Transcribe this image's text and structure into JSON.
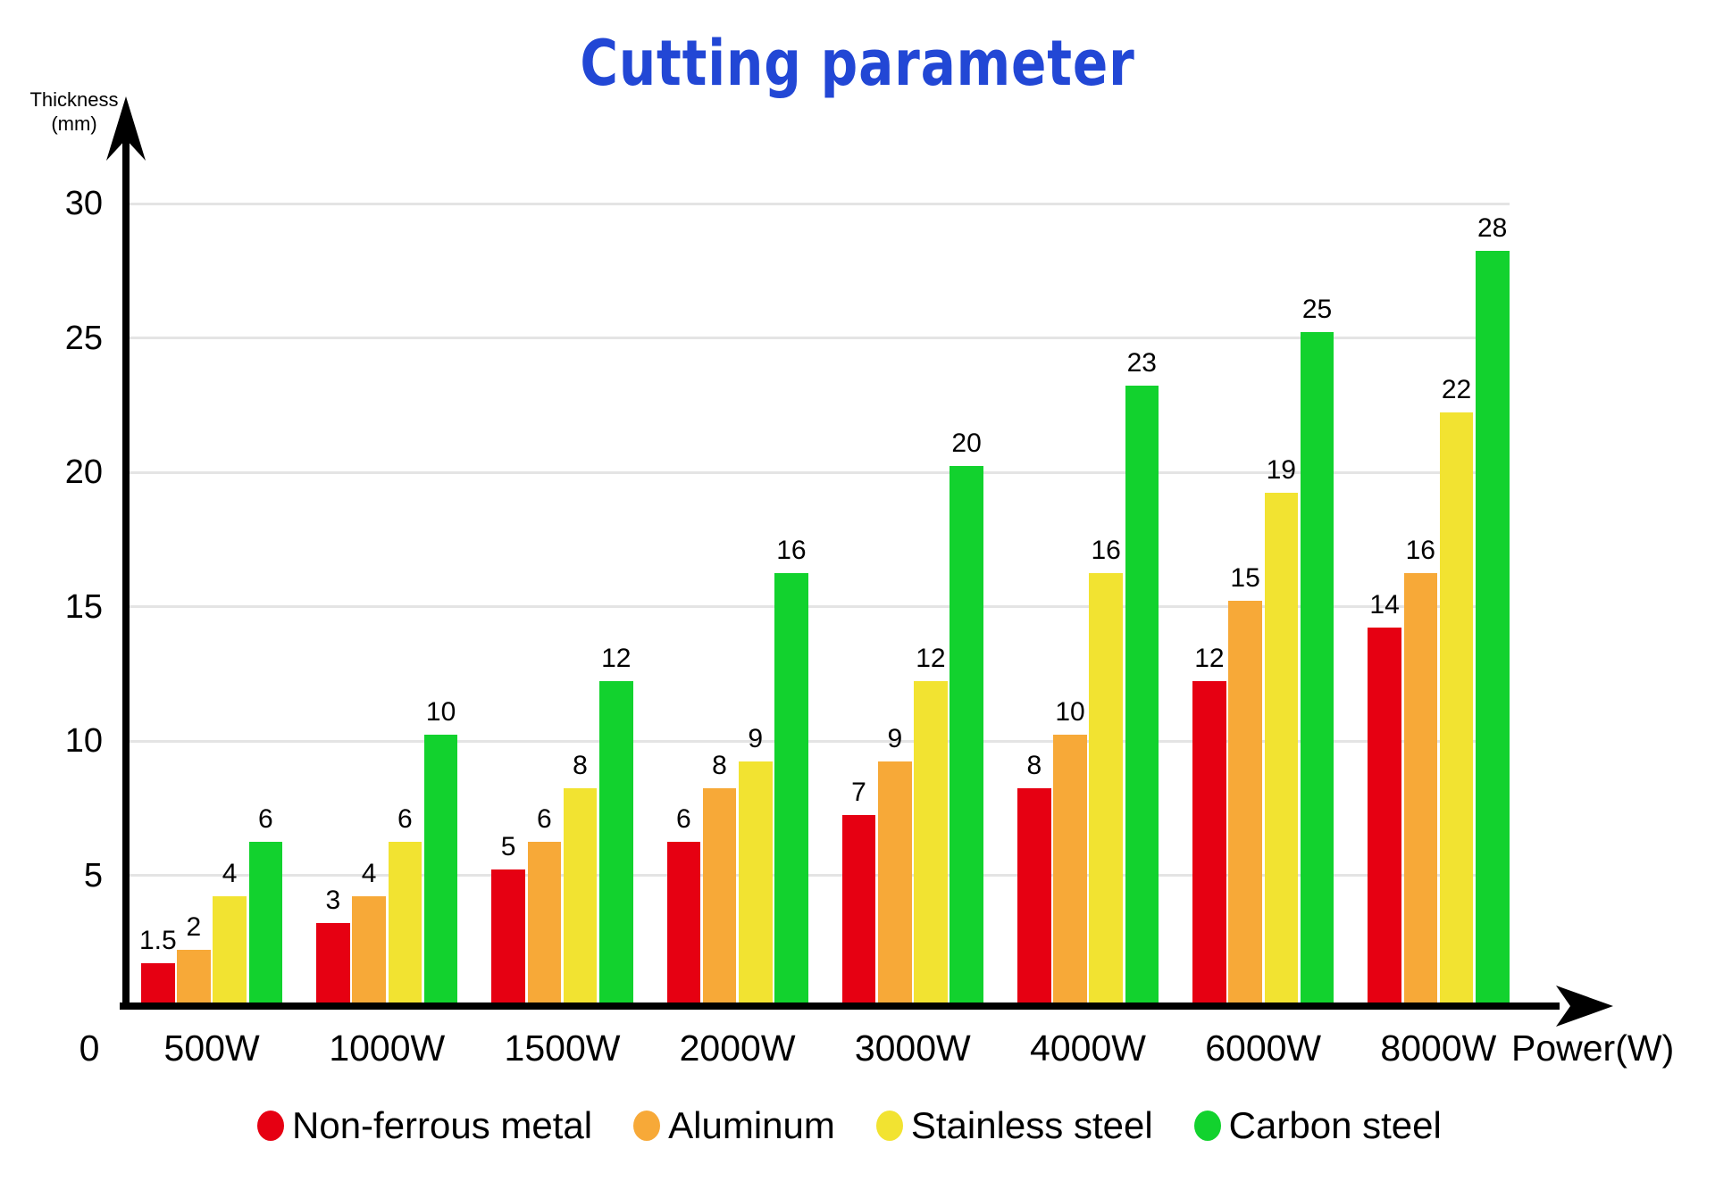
{
  "chart_data": {
    "type": "bar",
    "title": "Cutting parameter",
    "xlabel": "Power(W)",
    "ylabel": "Thickness (mm)",
    "ylabel_lines": [
      "Thickness",
      "(mm)"
    ],
    "origin_label": "0",
    "categories": [
      "500W",
      "1000W",
      "1500W",
      "2000W",
      "3000W",
      "4000W",
      "6000W",
      "8000W"
    ],
    "series": [
      {
        "name": "Non-ferrous metal",
        "color": "#e60012",
        "values": [
          1.5,
          3,
          5,
          6,
          7,
          8,
          12,
          14
        ]
      },
      {
        "name": "Aluminum",
        "color": "#f7a938",
        "values": [
          2,
          4,
          6,
          8,
          9,
          10,
          15,
          16
        ]
      },
      {
        "name": "Stainless steel",
        "color": "#f2e331",
        "values": [
          4,
          6,
          8,
          9,
          12,
          16,
          19,
          22
        ]
      },
      {
        "name": "Carbon steel",
        "color": "#12d22e",
        "values": [
          6,
          10,
          12,
          16,
          20,
          23,
          25,
          28
        ]
      }
    ],
    "ylim": [
      0,
      30
    ],
    "yticks": [
      5,
      10,
      15,
      20,
      25,
      30
    ],
    "grid": true,
    "legend_position": "bottom"
  },
  "colors": {
    "title": "#2247d5",
    "axis": "#000000",
    "gridline": "#e4e4e4",
    "label_text": "#000000",
    "background": "#ffffff"
  }
}
